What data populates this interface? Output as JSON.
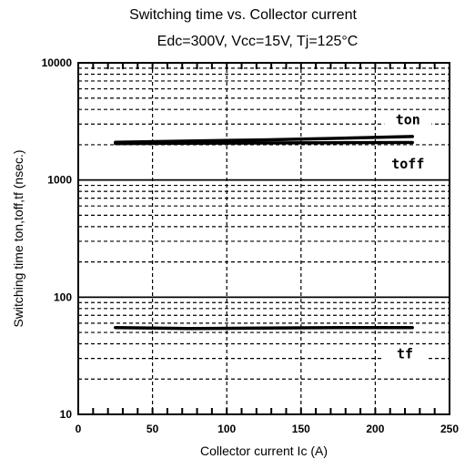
{
  "chart_data": {
    "type": "line",
    "title": "Switching time vs. Collector current",
    "subtitle": "Edc=300V, Vcc=15V, Tj=125°C",
    "xlabel": "Collector current  Ic (A)",
    "ylabel": "Switching time  ton,toff,tf (nsec.)",
    "xlim": [
      0,
      250
    ],
    "ylim": [
      10,
      10000
    ],
    "yscale": "log",
    "x_ticks": [
      0,
      50,
      100,
      150,
      200,
      250
    ],
    "y_ticks": [
      10,
      100,
      1000,
      10000
    ],
    "x_tick_labels": [
      "0",
      "50",
      "100",
      "150",
      "200",
      "250"
    ],
    "y_tick_labels": [
      "10",
      "100",
      "1000",
      "10000"
    ],
    "grid": true,
    "series": [
      {
        "name": "ton",
        "x": [
          25,
          75,
          125,
          175,
          225
        ],
        "y": [
          2100,
          2150,
          2200,
          2270,
          2350
        ],
        "label_at": [
          222,
          3000
        ]
      },
      {
        "name": "toff",
        "x": [
          25,
          75,
          125,
          175,
          225
        ],
        "y": [
          2050,
          2060,
          2070,
          2080,
          2090
        ],
        "label_at": [
          222,
          1250
        ]
      },
      {
        "name": "tf",
        "x": [
          25,
          75,
          125,
          175,
          225
        ],
        "y": [
          55,
          54,
          54.5,
          55,
          55
        ],
        "label_at": [
          220,
          30
        ]
      }
    ]
  }
}
